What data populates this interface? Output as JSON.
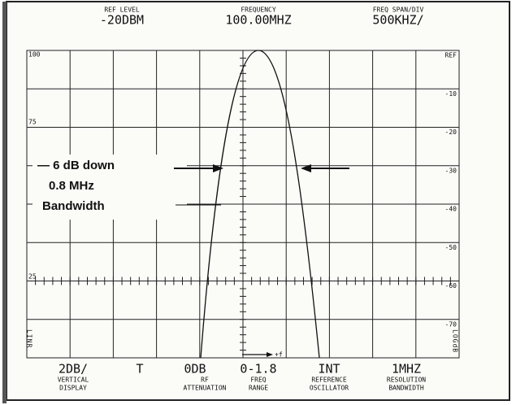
{
  "header": {
    "ref_level": {
      "label": "REF LEVEL",
      "value": "-20DBM"
    },
    "frequency": {
      "label": "FREQUENCY",
      "value": "100.00MHZ"
    },
    "span": {
      "label": "FREQ SPAN/DIV",
      "value": "500KHZ/"
    }
  },
  "left_scale": [
    "100",
    "75",
    "25"
  ],
  "right_scale": [
    "REF",
    "-10",
    "-20",
    "-30",
    "-40",
    "-50",
    "-60",
    "-70"
  ],
  "left_mode": "LINR",
  "right_mode": "LOGdB",
  "annotation": [
    "— 6 dB down",
    "0.8 MHz",
    "Bandwidth"
  ],
  "f_marker": "+f",
  "settings": [
    {
      "value": "2DB/",
      "label": [
        "VERTICAL",
        "DISPLAY"
      ]
    },
    {
      "value": "T",
      "label": []
    },
    {
      "value": "0DB",
      "label": [
        "RF",
        "ATTENUATION"
      ]
    },
    {
      "value": "0-1.8",
      "label": [
        "FREQ",
        "RANGE"
      ]
    },
    {
      "value": "INT",
      "label": [
        "REFERENCE",
        "OSCILLATOR"
      ]
    },
    {
      "value": "1MHZ",
      "label": [
        "RESOLUTION",
        "BANDWIDTH"
      ]
    }
  ]
}
